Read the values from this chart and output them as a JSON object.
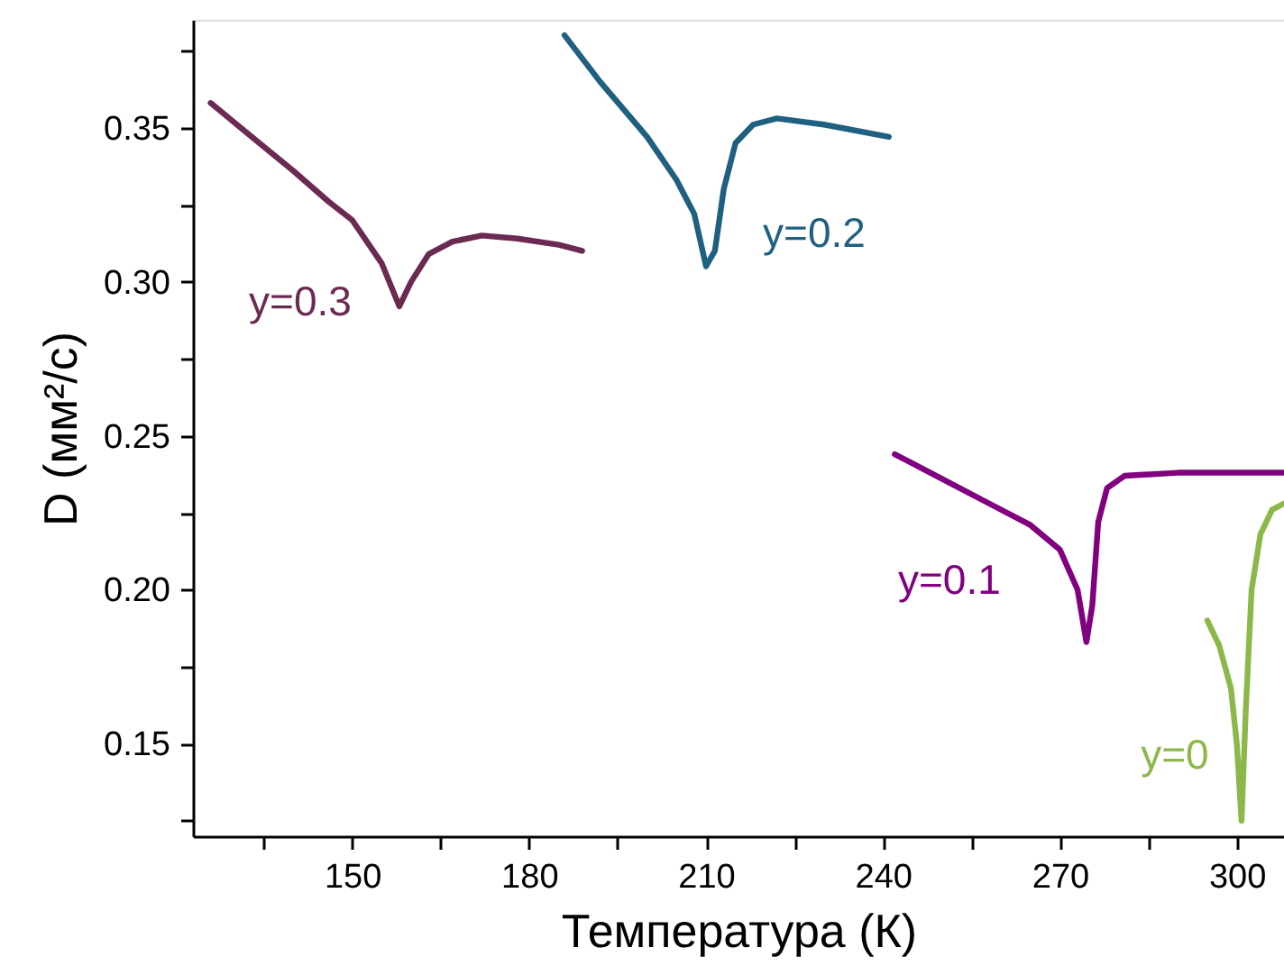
{
  "chart_data": {
    "type": "line",
    "xlabel": "Температура (К)",
    "ylabel": "D (мм²/с)",
    "xlim": [
      123,
      308
    ],
    "ylim": [
      0.12,
      0.385
    ],
    "xticks": [
      {
        "value": 135,
        "label": null
      },
      150,
      {
        "value": 165,
        "label": null
      },
      180,
      {
        "value": 195,
        "label": null
      },
      210,
      {
        "value": 225,
        "label": null
      },
      240,
      {
        "value": 255,
        "label": null
      },
      270,
      {
        "value": 285,
        "label": null
      },
      300
    ],
    "yticks": [
      {
        "value": 0.125,
        "label": null
      },
      0.15,
      {
        "value": 0.175,
        "label": null
      },
      {
        "value": 0.2,
        "label": "0.20"
      },
      {
        "value": 0.225,
        "label": null
      },
      0.25,
      {
        "value": 0.275,
        "label": null
      },
      {
        "value": 0.3,
        "label": "0.30"
      },
      {
        "value": 0.325,
        "label": null
      },
      0.35,
      {
        "value": 0.375,
        "label": null
      }
    ],
    "grid": false,
    "marker": "none",
    "line_style": "solid",
    "series": [
      {
        "name": "y=0.3",
        "color": "#6b2a52",
        "x": [
          126,
          133,
          140,
          146,
          150,
          155,
          158,
          160,
          163,
          167,
          172,
          178,
          185,
          189
        ],
        "values": [
          0.358,
          0.347,
          0.336,
          0.326,
          0.32,
          0.306,
          0.292,
          0.3,
          0.309,
          0.313,
          0.315,
          0.314,
          0.312,
          0.31
        ]
      },
      {
        "name": "y=0.2",
        "color": "#1f5f80",
        "x": [
          186,
          192,
          200,
          205,
          208,
          210,
          211.5,
          213,
          215,
          218,
          222,
          230,
          241
        ],
        "values": [
          0.38,
          0.365,
          0.347,
          0.333,
          0.322,
          0.305,
          0.31,
          0.33,
          0.345,
          0.351,
          0.353,
          0.351,
          0.347
        ]
      },
      {
        "name": "y=0.1",
        "color": "#800080",
        "x": [
          242,
          250,
          258,
          265,
          270,
          273,
          274.5,
          275.5,
          276.5,
          278,
          281,
          290,
          300,
          308
        ],
        "values": [
          0.244,
          0.236,
          0.228,
          0.221,
          0.213,
          0.2,
          0.183,
          0.195,
          0.222,
          0.233,
          0.237,
          0.238,
          0.238,
          0.238
        ]
      },
      {
        "name": "y=0",
        "color": "#8cb84a",
        "x": [
          295,
          297,
          299,
          300,
          300.8,
          301.5,
          302.5,
          304,
          306,
          308
        ],
        "values": [
          0.19,
          0.182,
          0.168,
          0.15,
          0.125,
          0.16,
          0.2,
          0.218,
          0.226,
          0.228
        ]
      }
    ]
  }
}
